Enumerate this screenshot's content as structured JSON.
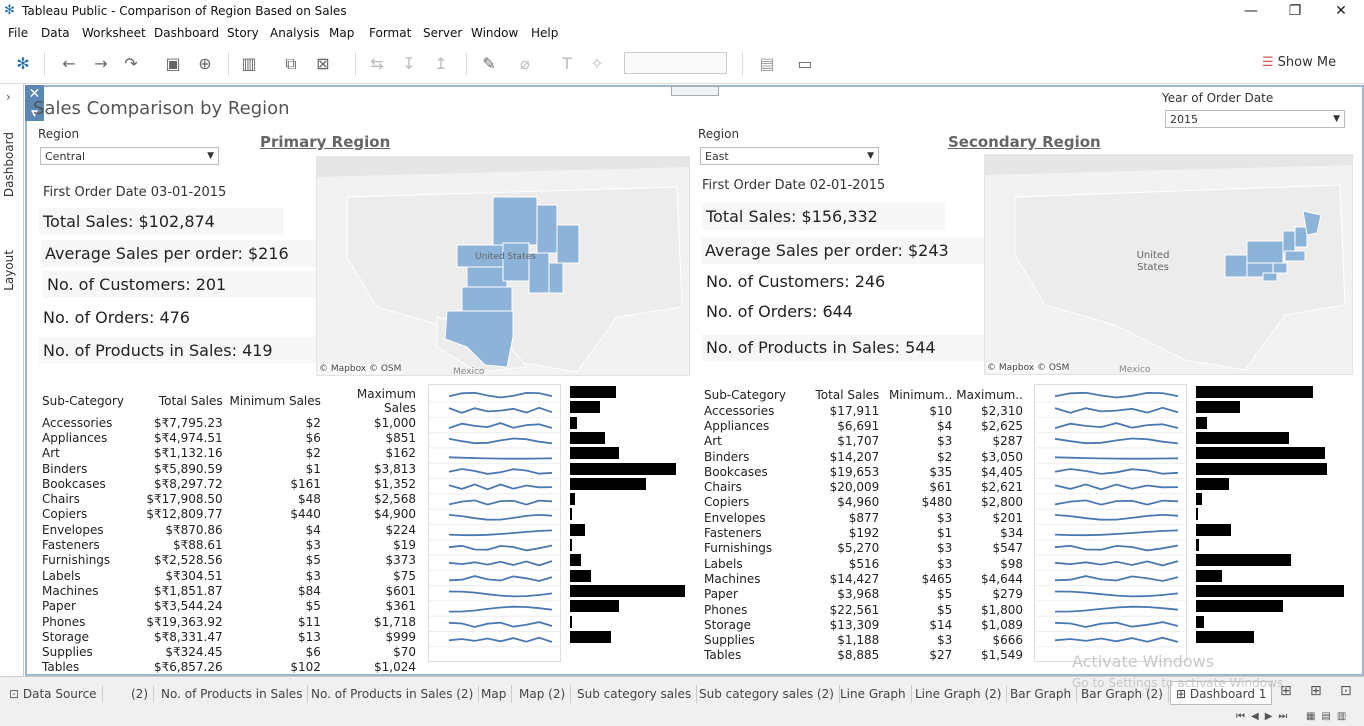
{
  "window": {
    "title": "Tableau Public - Comparison of Region Based on Sales"
  },
  "menu": [
    "File",
    "Data",
    "Worksheet",
    "Dashboard",
    "Story",
    "Analysis",
    "Map",
    "Format",
    "Server",
    "Window",
    "Help"
  ],
  "toolbar": {
    "show_me": "Show Me"
  },
  "side_tabs": {
    "dashboard": "Dashboard",
    "layout": "Layout"
  },
  "dashboard": {
    "title": "Sales Comparison by Region",
    "year_filter": {
      "label": "Year of Order Date",
      "value": "2015"
    }
  },
  "primary": {
    "heading": "Primary Region",
    "region_label": "Region",
    "region_value": "Central",
    "first_order": "First Order Date 03-01-2015",
    "total_sales": "Total Sales: $102,874",
    "avg_sales": "Average Sales per order: $216",
    "customers": "No. of Customers: 201",
    "orders": "No. of Orders: 476",
    "products": "No. of Products in Sales: 419",
    "map_attribution": "© Mapbox © OSM",
    "map_label_us": "United States",
    "map_label_mexico": "Mexico",
    "columns": [
      "Sub-Category",
      "Total Sales",
      "Minimum Sales",
      "Maximum Sales"
    ],
    "rows": [
      [
        "Accessories",
        "$₹7,795.23",
        "$2",
        "$1,000"
      ],
      [
        "Appliances",
        "$₹4,974.51",
        "$6",
        "$851"
      ],
      [
        "Art",
        "$₹1,132.16",
        "$2",
        "$162"
      ],
      [
        "Binders",
        "$₹5,890.59",
        "$1",
        "$3,813"
      ],
      [
        "Bookcases",
        "$₹8,297.72",
        "$161",
        "$1,352"
      ],
      [
        "Chairs",
        "$₹17,908.50",
        "$48",
        "$2,568"
      ],
      [
        "Copiers",
        "$₹12,809.77",
        "$440",
        "$4,900"
      ],
      [
        "Envelopes",
        "$₹870.86",
        "$4",
        "$224"
      ],
      [
        "Fasteners",
        "$₹88.61",
        "$3",
        "$19"
      ],
      [
        "Furnishings",
        "$₹2,528.56",
        "$5",
        "$373"
      ],
      [
        "Labels",
        "$₹304.51",
        "$3",
        "$75"
      ],
      [
        "Machines",
        "$₹1,851.87",
        "$84",
        "$601"
      ],
      [
        "Paper",
        "$₹3,544.24",
        "$5",
        "$361"
      ],
      [
        "Phones",
        "$₹19,363.92",
        "$11",
        "$1,718"
      ],
      [
        "Storage",
        "$₹8,331.47",
        "$13",
        "$999"
      ],
      [
        "Supplies",
        "$₹324.45",
        "$6",
        "$70"
      ],
      [
        "Tables",
        "$₹6,857.26",
        "$102",
        "$1,024"
      ]
    ],
    "bar_values": [
      7795.23,
      4974.51,
      1132.16,
      5890.59,
      8297.72,
      17908.5,
      12809.77,
      870.86,
      88.61,
      2528.56,
      304.51,
      1851.87,
      3544.24,
      19363.92,
      8331.47,
      324.45,
      6857.26
    ]
  },
  "secondary": {
    "heading": "Secondary Region",
    "region_label": "Region",
    "region_value": "East",
    "first_order": "First Order Date 02-01-2015",
    "total_sales": "Total Sales: $156,332",
    "avg_sales": "Average Sales per order: $243",
    "customers": "No. of Customers: 246",
    "orders": "No. of Orders: 644",
    "products": "No. of Products in Sales: 544",
    "map_attribution": "© Mapbox © OSM",
    "map_label_us": "United States",
    "map_label_mexico": "Mexico",
    "columns": [
      "Sub-Category",
      "Total Sales",
      "Minimum..",
      "Maximum.."
    ],
    "rows": [
      [
        "Accessories",
        "$17,911",
        "$10",
        "$2,310"
      ],
      [
        "Appliances",
        "$6,691",
        "$4",
        "$2,625"
      ],
      [
        "Art",
        "$1,707",
        "$3",
        "$287"
      ],
      [
        "Binders",
        "$14,207",
        "$2",
        "$3,050"
      ],
      [
        "Bookcases",
        "$19,653",
        "$35",
        "$4,405"
      ],
      [
        "Chairs",
        "$20,009",
        "$61",
        "$2,621"
      ],
      [
        "Copiers",
        "$4,960",
        "$480",
        "$2,800"
      ],
      [
        "Envelopes",
        "$877",
        "$3",
        "$201"
      ],
      [
        "Fasteners",
        "$192",
        "$1",
        "$34"
      ],
      [
        "Furnishings",
        "$5,270",
        "$3",
        "$547"
      ],
      [
        "Labels",
        "$516",
        "$3",
        "$98"
      ],
      [
        "Machines",
        "$14,427",
        "$465",
        "$4,644"
      ],
      [
        "Paper",
        "$3,968",
        "$5",
        "$279"
      ],
      [
        "Phones",
        "$22,561",
        "$5",
        "$1,800"
      ],
      [
        "Storage",
        "$13,309",
        "$14",
        "$1,089"
      ],
      [
        "Supplies",
        "$1,188",
        "$3",
        "$666"
      ],
      [
        "Tables",
        "$8,885",
        "$27",
        "$1,549"
      ]
    ],
    "bar_values": [
      17911,
      6691,
      1707,
      14207,
      19653,
      20009,
      4960,
      877,
      192,
      5270,
      516,
      14427,
      3968,
      22561,
      13309,
      1188,
      8885
    ]
  },
  "sheet_tabs": [
    "Data Source",
    "(2)",
    "No. of Products in Sales",
    "No. of Products in Sales (2)",
    "Map",
    "Map (2)",
    "Sub category sales",
    "Sub category sales (2)",
    "Line Graph",
    "Line Graph (2)",
    "Bar Graph",
    "Bar Graph (2)",
    "Dashboard 1"
  ],
  "watermark": {
    "line1": "Activate Windows",
    "line2": "Go to Settings to activate Windows."
  },
  "colors": {
    "accent": "#5b87b5",
    "map_fill": "#8db3d9",
    "bar": "#000000",
    "spark": "#4a78b0"
  }
}
